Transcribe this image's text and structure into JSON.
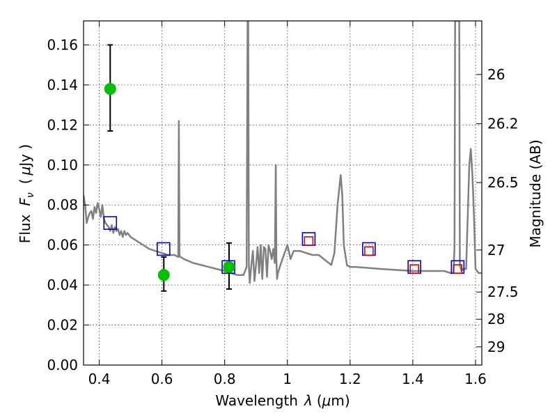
{
  "chart_data": {
    "type": "line",
    "xlabel": "Wavelength",
    "xlabel_symbol": "λ",
    "xlabel_unit_prefix": "(",
    "xlabel_unit_mu": "μ",
    "xlabel_unit_suffix": "m)",
    "ylabel_left_prefix": "Flux",
    "ylabel_left_symbol": "F",
    "ylabel_left_subscript": "ν",
    "ylabel_left_unit_open": "(",
    "ylabel_left_unit_mu": "μ",
    "ylabel_left_unit_rest": "Jy )",
    "ylabel_right": "Magnitude (AB)",
    "xlim": [
      0.35,
      1.62
    ],
    "ylim": [
      0.0,
      0.172
    ],
    "grid": true,
    "xticks": [
      {
        "value": 0.4,
        "label": "0.4"
      },
      {
        "value": 0.6,
        "label": "0.6"
      },
      {
        "value": 0.8,
        "label": "0.8"
      },
      {
        "value": 1.0,
        "label": "1"
      },
      {
        "value": 1.2,
        "label": "1.2"
      },
      {
        "value": 1.4,
        "label": "1.4"
      },
      {
        "value": 1.6,
        "label": "1.6"
      }
    ],
    "yticks": [
      {
        "value": 0.0,
        "label": "0.00"
      },
      {
        "value": 0.02,
        "label": "0.02"
      },
      {
        "value": 0.04,
        "label": "0.04"
      },
      {
        "value": 0.06,
        "label": "0.06"
      },
      {
        "value": 0.08,
        "label": "0.08"
      },
      {
        "value": 0.1,
        "label": "0.10"
      },
      {
        "value": 0.12,
        "label": "0.12"
      },
      {
        "value": 0.14,
        "label": "0.14"
      },
      {
        "value": 0.16,
        "label": "0.16"
      }
    ],
    "right_ticks": [
      {
        "flux": 0.1452,
        "label": "26"
      },
      {
        "flux": 0.1206,
        "label": "26.2"
      },
      {
        "flux": 0.0912,
        "label": "26.5"
      },
      {
        "flux": 0.0575,
        "label": "27"
      },
      {
        "flux": 0.0365,
        "label": "27.5"
      },
      {
        "flux": 0.0229,
        "label": "28"
      },
      {
        "flux": 0.0091,
        "label": "29"
      }
    ],
    "series": [
      {
        "kind": "model-spectrum",
        "color": "#808080",
        "x": [
          0.35,
          0.355,
          0.36,
          0.365,
          0.37,
          0.375,
          0.38,
          0.385,
          0.39,
          0.395,
          0.4,
          0.405,
          0.41,
          0.415,
          0.42,
          0.425,
          0.43,
          0.435,
          0.44,
          0.445,
          0.45,
          0.455,
          0.46,
          0.465,
          0.47,
          0.475,
          0.48,
          0.485,
          0.49,
          0.5,
          0.52,
          0.54,
          0.56,
          0.58,
          0.6,
          0.62,
          0.64,
          0.652,
          0.654,
          0.656,
          0.658,
          0.66,
          0.67,
          0.7,
          0.75,
          0.8,
          0.84,
          0.86,
          0.87,
          0.873,
          0.875,
          0.877,
          0.88,
          0.885,
          0.89,
          0.895,
          0.9,
          0.905,
          0.91,
          0.915,
          0.92,
          0.925,
          0.93,
          0.935,
          0.94,
          0.945,
          0.95,
          0.955,
          0.96,
          0.963,
          0.965,
          0.967,
          0.97,
          0.98,
          1.0,
          1.01,
          1.02,
          1.04,
          1.08,
          1.1,
          1.14,
          1.15,
          1.16,
          1.17,
          1.175,
          1.18,
          1.19,
          1.2,
          1.22,
          1.3,
          1.4,
          1.5,
          1.52,
          1.53,
          1.533,
          1.535,
          1.54,
          1.545,
          1.548,
          1.55,
          1.555,
          1.56,
          1.57,
          1.58,
          1.585,
          1.59,
          1.595,
          1.6,
          1.61,
          1.62
        ],
        "y": [
          0.085,
          0.08,
          0.071,
          0.074,
          0.076,
          0.077,
          0.073,
          0.079,
          0.076,
          0.081,
          0.078,
          0.074,
          0.08,
          0.073,
          0.071,
          0.07,
          0.069,
          0.067,
          0.07,
          0.066,
          0.069,
          0.067,
          0.068,
          0.065,
          0.067,
          0.064,
          0.067,
          0.065,
          0.066,
          0.064,
          0.062,
          0.06,
          0.058,
          0.057,
          0.056,
          0.055,
          0.055,
          0.054,
          0.122,
          0.055,
          0.054,
          0.054,
          0.053,
          0.051,
          0.049,
          0.047,
          0.045,
          0.045,
          0.049,
          0.172,
          0.172,
          0.05,
          0.041,
          0.05,
          0.057,
          0.042,
          0.05,
          0.059,
          0.046,
          0.06,
          0.043,
          0.059,
          0.058,
          0.044,
          0.06,
          0.057,
          0.053,
          0.058,
          0.051,
          0.1,
          0.053,
          0.043,
          0.046,
          0.051,
          0.06,
          0.053,
          0.057,
          0.057,
          0.055,
          0.055,
          0.05,
          0.056,
          0.08,
          0.095,
          0.085,
          0.06,
          0.05,
          0.049,
          0.049,
          0.048,
          0.047,
          0.047,
          0.046,
          0.046,
          0.06,
          0.172,
          0.172,
          0.172,
          0.172,
          0.05,
          0.047,
          0.048,
          0.048,
          0.1,
          0.108,
          0.095,
          0.075,
          0.048,
          0.046,
          0.046
        ]
      },
      {
        "kind": "model-photometry",
        "marker": "open-square",
        "color": "#0000cc",
        "x": [
          0.435,
          0.605,
          0.812,
          1.068,
          1.26,
          1.405,
          1.543
        ],
        "y": [
          0.071,
          0.058,
          0.049,
          0.063,
          0.058,
          0.049,
          0.049
        ]
      },
      {
        "kind": "model-photometry-inner",
        "marker": "open-square",
        "color": "#dd0000",
        "x": [
          1.068,
          1.26,
          1.405,
          1.543
        ],
        "y": [
          0.062,
          0.057,
          0.048,
          0.048
        ]
      },
      {
        "kind": "observed",
        "marker": "filled-circle",
        "color": "#00c000",
        "x": [
          0.435,
          0.606,
          0.814
        ],
        "y": [
          0.138,
          0.045,
          0.049
        ],
        "yerr_low": [
          0.117,
          0.037,
          0.038
        ],
        "yerr_high": [
          0.16,
          0.054,
          0.061
        ]
      }
    ]
  }
}
